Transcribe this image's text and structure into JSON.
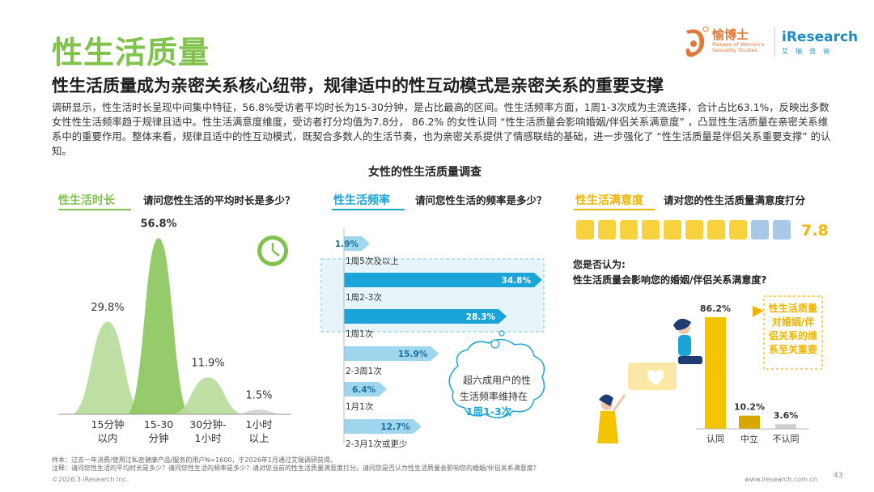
{
  "page": {
    "title": "性生活质量",
    "subtitle": "性生活质量成为亲密关系核心纽带，规律适中的性互动模式是亲密关系的重要支撑",
    "intro": "调研显示，性生活时长呈现中间集中特征，56.8%受访者平均时长为15-30分钟，是占比最高的区间。性生活频率方面，1周1-3次成为主流选择，合计占比63.1%，反映出多数女性性生活频率趋于规律且适中。性生活满意度维度，受访者打分均值为7.8分， 86.2% 的女性认同 “性生活质量会影响婚姻/伴侣关系满意度” ，凸显性生活质量在亲密关系维系中的重要作用。整体来看，规律且适中的性互动模式，既契合多数人的生活节奏，也为亲密关系提供了情感联结的基础，进一步强化了 “性生活质量是伴侣关系重要支撑” 的认知。",
    "chart_heading": "女性的性生活质量调查",
    "brand_cn": "愉博士",
    "brand_en": "Pioneer of Women's Sexuality Studies",
    "ir_logo": "iResearch",
    "ir_cn": "艾瑞咨询",
    "foot_sample": "样本：过去一年消费/使用过私密健康产品/服务的用户N=1600，于2026年1月通过艾瑞调研获得。",
    "foot_note": "注释：请问您性生活的平均时长是多少？请问您性生活的频率是多少？请对您当前的性生活质量满意度打分。请问您是否认为性生活质量会影响您的婚姻/伴侣关系满意度？",
    "foot_copy": "©2026.3 iResearch Inc.",
    "foot_url": "www.iresearch.com.cn",
    "page_num": "43"
  },
  "chart_data": [
    {
      "type": "area",
      "tag": "性生活时长",
      "question": "请问您性生活的平均时长是多少？",
      "categories": [
        "15分钟\n以内",
        "15-30\n分钟",
        "30分钟-\n1小时",
        "1小时\n以上"
      ],
      "values": [
        29.8,
        56.8,
        11.9,
        1.5
      ],
      "unit": "%",
      "colors": [
        "#b8dc9c",
        "#8cc75e",
        "#b8dc9c",
        "#d4d4d4"
      ],
      "icon": "clock-icon"
    },
    {
      "type": "bar",
      "tag": "性生活频率",
      "question": "请问您性生活的频率是多少？",
      "categories": [
        "1周5次及以上",
        "1周2-3次",
        "1周1次",
        "2-3周1次",
        "1月1次",
        "2-3月1次或更少"
      ],
      "values": [
        1.9,
        34.8,
        28.3,
        15.9,
        6.4,
        12.7
      ],
      "unit": "%",
      "highlight": [
        1,
        2
      ],
      "colors": {
        "dark": "#1ba4d8",
        "light": "#9fd6ee"
      },
      "callout": {
        "line1": "超六成用户的性",
        "line2": "生活频率维持在",
        "line3": "1周1-3次"
      }
    },
    {
      "type": "bar",
      "tag": "性生活满意度",
      "question": "请对您的性生活质量满意度打分",
      "score": 7.8,
      "scale_max": 10,
      "colors": {
        "filled": "#f7d23c",
        "rest": "#a8c8e8"
      },
      "sub_question_1": "您是否认为:",
      "sub_question_2": "性生活质量会影响您的婚姻/伴侣关系满意度?",
      "categories": [
        "认同",
        "中立",
        "不认同"
      ],
      "values": [
        86.2,
        10.2,
        3.6
      ],
      "unit": "%",
      "bar_colors": [
        "#f5c400",
        "#d9a800",
        "#cfcfcf"
      ],
      "callout": "性生活质量对婚姻/伴侣关系的维系至关重要"
    }
  ]
}
